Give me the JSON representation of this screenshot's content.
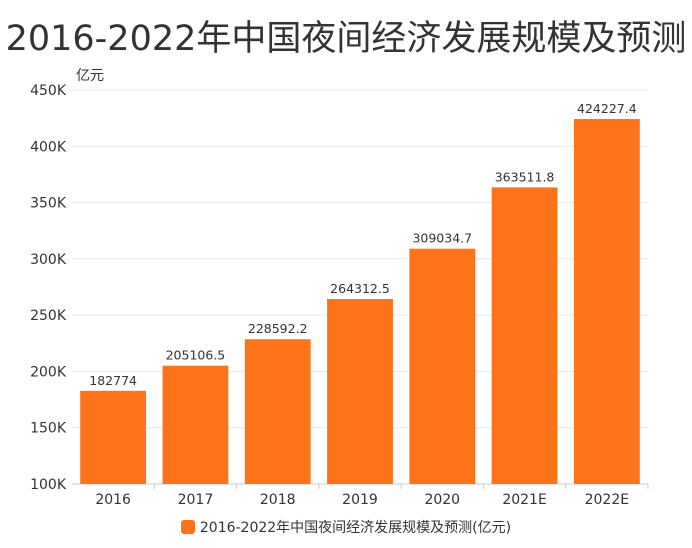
{
  "chart_data": {
    "type": "bar",
    "title": "2016-2022年中国夜间经济发展规模及预测",
    "unit_label": "亿元",
    "categories": [
      "2016",
      "2017",
      "2018",
      "2019",
      "2020",
      "2021E",
      "2022E"
    ],
    "series": [
      {
        "name": "2016-2022年中国夜间经济发展规模及预测(亿元)",
        "values": [
          182774,
          205106.5,
          228592.2,
          264312.5,
          309034.7,
          363511.8,
          424227.4
        ],
        "value_labels": [
          "182774",
          "205106.5",
          "228592.2",
          "264312.5",
          "309034.7",
          "363511.8",
          "424227.4"
        ]
      }
    ],
    "ylim": [
      100000,
      450000
    ],
    "yticks": [
      100000,
      150000,
      200000,
      250000,
      300000,
      350000,
      400000,
      450000
    ],
    "ytick_labels": [
      "100K",
      "150K",
      "200K",
      "250K",
      "300K",
      "350K",
      "400K",
      "450K"
    ],
    "grid": true,
    "legend_position": "bottom-center",
    "colors": {
      "bar": "#fc7319",
      "text": "#333333",
      "grid": "#e9e9e9",
      "axis": "#cccccc"
    }
  }
}
